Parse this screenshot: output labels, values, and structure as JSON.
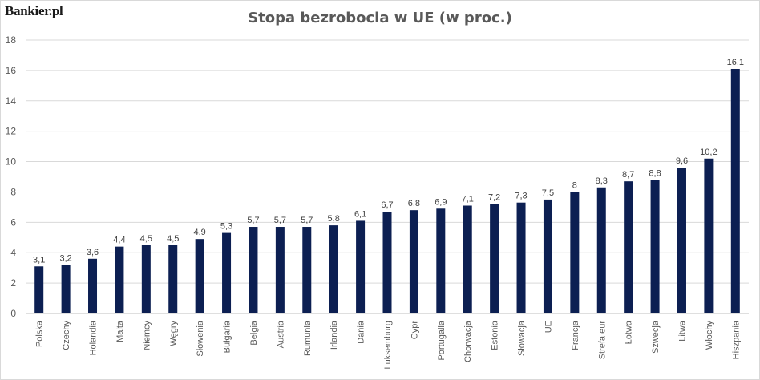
{
  "logo": "Bankier.pl",
  "chart_data": {
    "type": "bar",
    "title": "Stopa bezrobocia w UE (w proc.)",
    "xlabel": "",
    "ylabel": "",
    "ylim": [
      0,
      18
    ],
    "yticks": [
      0,
      2,
      4,
      6,
      8,
      10,
      12,
      14,
      16,
      18
    ],
    "grid": true,
    "bar_color": "#0c1f52",
    "categories": [
      "Polska",
      "Czechy",
      "Holandia",
      "Malta",
      "Niemcy",
      "Węgry",
      "Słowenia",
      "Bułgaria",
      "Belgia",
      "Austria",
      "Rumunia",
      "Irlandia",
      "Dania",
      "Luksemburg",
      "Cypr",
      "Portugalia",
      "Chorwacja",
      "Estonia",
      "Słowacja",
      "UE",
      "Francja",
      "Strefa eur",
      "Łotwa",
      "Szwecja",
      "Litwa",
      "Włochy",
      "Hiszpania"
    ],
    "values": [
      3.1,
      3.2,
      3.6,
      4.4,
      4.5,
      4.5,
      4.9,
      5.3,
      5.7,
      5.7,
      5.7,
      5.8,
      6.1,
      6.7,
      6.8,
      6.9,
      7.1,
      7.2,
      7.3,
      7.5,
      8,
      8.3,
      8.7,
      8.8,
      9.6,
      10.2,
      16.1
    ],
    "labels": [
      "3,1",
      "3,2",
      "3,6",
      "4,4",
      "4,5",
      "4,5",
      "4,9",
      "5,3",
      "5,7",
      "5,7",
      "5,7",
      "5,8",
      "6,1",
      "6,7",
      "6,8",
      "6,9",
      "7,1",
      "7,2",
      "7,3",
      "7,5",
      "8",
      "8,3",
      "8,7",
      "8,8",
      "9,6",
      "10,2",
      "16,1"
    ]
  }
}
